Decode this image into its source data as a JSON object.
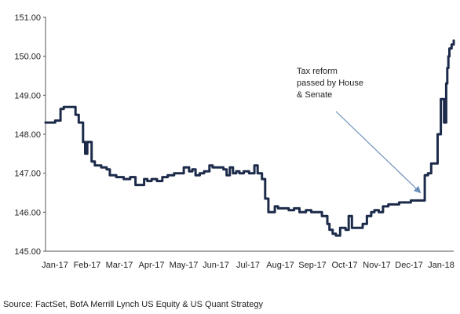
{
  "chart_data": {
    "type": "line",
    "title": "",
    "xlabel": "",
    "ylabel": "",
    "ylim": [
      145.0,
      151.0
    ],
    "y_ticks": [
      "151.00",
      "150.00",
      "149.00",
      "148.00",
      "147.00",
      "146.00",
      "145.00"
    ],
    "y_tick_values": [
      151,
      150,
      149,
      148,
      147,
      146,
      145
    ],
    "x_tick_labels": [
      "Jan-17",
      "Feb-17",
      "Mar-17",
      "Apr-17",
      "May-17",
      "Jun-17",
      "Jul-17",
      "Aug-17",
      "Sep-17",
      "Oct-17",
      "Nov-17",
      "Dec-17",
      "Jan-18"
    ],
    "x_range": [
      "2017-01-01",
      "2018-01-17"
    ],
    "grid": false,
    "line_color": "#1c2b4a",
    "series": [
      {
        "x": [
          "2017-01-01",
          "2017-01-06",
          "2017-01-10",
          "2017-01-15",
          "2017-01-18",
          "2017-01-24",
          "2017-01-29",
          "2017-02-01",
          "2017-02-05",
          "2017-02-07",
          "2017-02-09",
          "2017-02-13",
          "2017-02-16",
          "2017-02-19",
          "2017-02-22",
          "2017-02-27",
          "2017-03-02",
          "2017-03-08",
          "2017-03-15",
          "2017-03-21",
          "2017-03-26",
          "2017-03-31",
          "2017-04-03",
          "2017-04-06",
          "2017-04-10",
          "2017-04-15",
          "2017-04-20",
          "2017-04-25",
          "2017-05-01",
          "2017-05-06",
          "2017-05-10",
          "2017-05-15",
          "2017-05-18",
          "2017-05-21",
          "2017-05-25",
          "2017-05-29",
          "2017-06-03",
          "2017-06-06",
          "2017-06-11",
          "2017-06-16",
          "2017-06-19",
          "2017-06-22",
          "2017-06-25",
          "2017-06-28",
          "2017-07-01",
          "2017-07-05",
          "2017-07-10",
          "2017-07-15",
          "2017-07-18",
          "2017-07-22",
          "2017-07-25",
          "2017-07-28",
          "2017-08-01",
          "2017-08-03",
          "2017-08-06",
          "2017-08-10",
          "2017-08-16",
          "2017-08-21",
          "2017-08-26",
          "2017-09-01",
          "2017-09-06",
          "2017-09-11",
          "2017-09-16",
          "2017-09-21",
          "2017-09-23",
          "2017-09-26",
          "2017-09-29",
          "2017-10-03",
          "2017-10-08",
          "2017-10-11",
          "2017-10-14",
          "2017-10-18",
          "2017-10-24",
          "2017-10-28",
          "2017-11-01",
          "2017-11-04",
          "2017-11-08",
          "2017-11-12",
          "2017-11-17",
          "2017-11-22",
          "2017-11-27",
          "2017-12-02",
          "2017-12-08",
          "2017-12-13",
          "2017-12-18",
          "2017-12-21",
          "2017-12-24",
          "2017-12-27",
          "2017-12-30",
          "2018-01-02",
          "2018-01-05",
          "2018-01-08",
          "2018-01-10",
          "2018-01-11",
          "2018-01-12",
          "2018-01-13",
          "2018-01-15",
          "2018-01-17"
        ],
        "values": [
          148.3,
          148.3,
          148.35,
          148.65,
          148.7,
          148.7,
          148.5,
          148.3,
          147.8,
          147.5,
          147.8,
          147.3,
          147.2,
          147.2,
          147.15,
          147.1,
          146.95,
          146.9,
          146.85,
          146.9,
          146.7,
          146.7,
          146.85,
          146.8,
          146.85,
          146.8,
          146.9,
          146.95,
          147.0,
          147.0,
          147.15,
          147.05,
          147.1,
          146.95,
          147.0,
          147.05,
          147.2,
          147.15,
          147.15,
          147.1,
          146.95,
          147.15,
          147.0,
          147.05,
          147.0,
          147.05,
          147.0,
          147.2,
          147.0,
          146.85,
          146.35,
          146.0,
          146.0,
          146.15,
          146.1,
          146.1,
          146.05,
          146.1,
          146.0,
          146.05,
          146.0,
          146.0,
          145.9,
          145.7,
          145.55,
          145.45,
          145.4,
          145.6,
          145.55,
          145.9,
          145.6,
          145.6,
          145.7,
          145.9,
          146.0,
          146.05,
          146.0,
          146.15,
          146.2,
          146.2,
          146.25,
          146.25,
          146.3,
          146.3,
          146.3,
          146.95,
          147.0,
          147.25,
          147.25,
          148.0,
          148.9,
          148.3,
          149.3,
          149.7,
          150.0,
          150.2,
          150.3,
          150.4
        ]
      }
    ],
    "annotation": {
      "lines": [
        "Tax reform",
        "passed by House",
        "& Senate"
      ],
      "points_to": {
        "x": "2017-12-17",
        "y": 146.5
      }
    }
  },
  "source": "Source: FactSet, BofA Merrill Lynch US Equity & US Quant Strategy"
}
